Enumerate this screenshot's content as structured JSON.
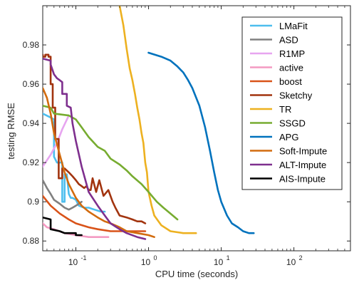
{
  "chart_data": {
    "type": "line",
    "title": "",
    "xlabel": "CPU time (seconds)",
    "ylabel": "testing RMSE",
    "xscale": "log",
    "xlim": [
      0.035,
      600
    ],
    "ylim": [
      0.875,
      1.0
    ],
    "xticks": [
      0.1,
      1,
      10,
      100
    ],
    "xtick_labels": [
      "10",
      "10",
      "10",
      "10"
    ],
    "xtick_exponents": [
      "-1",
      "0",
      "1",
      "2"
    ],
    "yticks": [
      0.88,
      0.9,
      0.92,
      0.94,
      0.96,
      0.98
    ],
    "ytick_labels": [
      "0.88",
      "0.9",
      "0.92",
      "0.94",
      "0.96",
      "0.98"
    ],
    "grid": false,
    "legend_position": "top-right",
    "series": [
      {
        "name": "LMaFit",
        "color": "#4DBEEE",
        "x": [
          0.035,
          0.045,
          0.05,
          0.05,
          0.055,
          0.06,
          0.065,
          0.065,
          0.07,
          0.07,
          0.075,
          0.08,
          0.085,
          0.09,
          0.1,
          0.11,
          0.13,
          0.15,
          0.18,
          0.22,
          0.25
        ],
        "y": [
          0.945,
          0.943,
          0.942,
          0.923,
          0.92,
          0.92,
          0.92,
          0.9,
          0.9,
          0.914,
          0.914,
          0.904,
          0.902,
          0.902,
          0.901,
          0.898,
          0.897,
          0.897,
          0.896,
          0.895,
          0.895
        ]
      },
      {
        "name": "ASD",
        "color": "#808080",
        "x": [
          0.035,
          0.04,
          0.045,
          0.05,
          0.06,
          0.07,
          0.08,
          0.09,
          0.1,
          0.11,
          0.12
        ],
        "y": [
          0.911,
          0.907,
          0.904,
          0.901,
          0.899,
          0.897,
          0.896,
          0.897,
          0.898,
          0.899,
          0.9
        ]
      },
      {
        "name": "R1MP",
        "color": "#E7A5F0",
        "x": [
          0.035,
          0.045,
          0.055,
          0.065,
          0.08
        ],
        "y": [
          0.918,
          0.924,
          0.93,
          0.937,
          0.944
        ]
      },
      {
        "name": "active",
        "color": "#F49AC2",
        "x": [
          0.035,
          0.04,
          0.05,
          0.07,
          0.1,
          0.15,
          0.2,
          0.28
        ],
        "y": [
          0.889,
          0.887,
          0.886,
          0.884,
          0.883,
          0.882,
          0.882,
          0.882
        ]
      },
      {
        "name": "boost",
        "color": "#D95319",
        "x": [
          0.035,
          0.045,
          0.06,
          0.08,
          0.1,
          0.15,
          0.2,
          0.3,
          0.5,
          0.7,
          0.9
        ],
        "y": [
          0.903,
          0.898,
          0.894,
          0.891,
          0.889,
          0.887,
          0.886,
          0.885,
          0.885,
          0.885,
          0.885
        ]
      },
      {
        "name": "Sketchy",
        "color": "#A2340F",
        "x": [
          0.035,
          0.035,
          0.038,
          0.038,
          0.042,
          0.042,
          0.045,
          0.045,
          0.048,
          0.048,
          0.052,
          0.052,
          0.058,
          0.058,
          0.065,
          0.065,
          0.07,
          0.08,
          0.09,
          0.1,
          0.11,
          0.12,
          0.13,
          0.14,
          0.15,
          0.16,
          0.17,
          0.19,
          0.21,
          0.24,
          0.28,
          0.32,
          0.35,
          0.4,
          0.5,
          0.6,
          0.7,
          0.8,
          0.9
        ],
        "y": [
          0.975,
          0.974,
          0.974,
          0.975,
          0.975,
          0.974,
          0.974,
          0.96,
          0.96,
          0.948,
          0.948,
          0.932,
          0.932,
          0.912,
          0.912,
          0.917,
          0.917,
          0.915,
          0.913,
          0.911,
          0.909,
          0.908,
          0.907,
          0.908,
          0.906,
          0.906,
          0.912,
          0.905,
          0.911,
          0.903,
          0.906,
          0.9,
          0.897,
          0.893,
          0.892,
          0.891,
          0.89,
          0.89,
          0.889
        ]
      },
      {
        "name": "TR",
        "color": "#EDB120",
        "x": [
          0.4,
          0.45,
          0.5,
          0.55,
          0.6,
          0.65,
          0.7,
          0.75,
          0.8,
          0.85,
          0.9,
          0.95,
          1.0,
          1.1,
          1.2,
          1.5,
          2,
          3,
          4.5
        ],
        "y": [
          1.0,
          0.99,
          0.978,
          0.968,
          0.962,
          0.955,
          0.948,
          0.942,
          0.935,
          0.93,
          0.92,
          0.915,
          0.905,
          0.898,
          0.893,
          0.888,
          0.885,
          0.884,
          0.884
        ]
      },
      {
        "name": "SSGD",
        "color": "#77AC30",
        "x": [
          0.035,
          0.045,
          0.05,
          0.08,
          0.1,
          0.12,
          0.15,
          0.2,
          0.25,
          0.3,
          0.4,
          0.5,
          0.6,
          0.8,
          1.0,
          1.3,
          1.6,
          2.0,
          2.5
        ],
        "y": [
          0.949,
          0.948,
          0.945,
          0.944,
          0.942,
          0.938,
          0.933,
          0.928,
          0.926,
          0.922,
          0.919,
          0.916,
          0.913,
          0.909,
          0.905,
          0.9,
          0.897,
          0.894,
          0.891
        ]
      },
      {
        "name": "APG",
        "color": "#0072BD",
        "x": [
          1.0,
          1.5,
          2.0,
          2.5,
          3.0,
          3.5,
          4.0,
          5.0,
          6.0,
          7.0,
          8.0,
          9.0,
          10.0,
          12.0,
          14.0,
          17.0,
          20.0,
          24.0,
          28.0
        ],
        "y": [
          0.976,
          0.974,
          0.972,
          0.969,
          0.966,
          0.962,
          0.958,
          0.949,
          0.938,
          0.926,
          0.915,
          0.906,
          0.9,
          0.893,
          0.889,
          0.887,
          0.885,
          0.884,
          0.884
        ]
      },
      {
        "name": "Soft-Impute",
        "color": "#D26B0E",
        "x": [
          0.035,
          0.04,
          0.045,
          0.05,
          0.06,
          0.07,
          0.08,
          0.1,
          0.12,
          0.15,
          0.2,
          0.25,
          0.3,
          0.4,
          0.5,
          0.7,
          1.0,
          1.2
        ],
        "y": [
          0.958,
          0.953,
          0.945,
          0.935,
          0.924,
          0.915,
          0.909,
          0.902,
          0.898,
          0.895,
          0.892,
          0.89,
          0.889,
          0.887,
          0.885,
          0.884,
          0.883,
          0.882
        ]
      },
      {
        "name": "ALT-Impute",
        "color": "#7E2F8E",
        "x": [
          0.035,
          0.045,
          0.045,
          0.05,
          0.055,
          0.06,
          0.065,
          0.065,
          0.075,
          0.075,
          0.085,
          0.09,
          0.1,
          0.12,
          0.15,
          0.2,
          0.25,
          0.3,
          0.4,
          0.5,
          0.7,
          0.9
        ],
        "y": [
          0.973,
          0.972,
          0.97,
          0.965,
          0.963,
          0.962,
          0.961,
          0.955,
          0.955,
          0.949,
          0.948,
          0.94,
          0.931,
          0.918,
          0.905,
          0.898,
          0.893,
          0.889,
          0.886,
          0.884,
          0.882,
          0.881
        ]
      },
      {
        "name": "AIS-Impute",
        "color": "#000000",
        "x": [
          0.035,
          0.045,
          0.045,
          0.06,
          0.07,
          0.08,
          0.09,
          0.1,
          0.1,
          0.12
        ],
        "y": [
          0.892,
          0.891,
          0.886,
          0.885,
          0.884,
          0.884,
          0.884,
          0.884,
          0.883,
          0.883
        ]
      }
    ]
  }
}
